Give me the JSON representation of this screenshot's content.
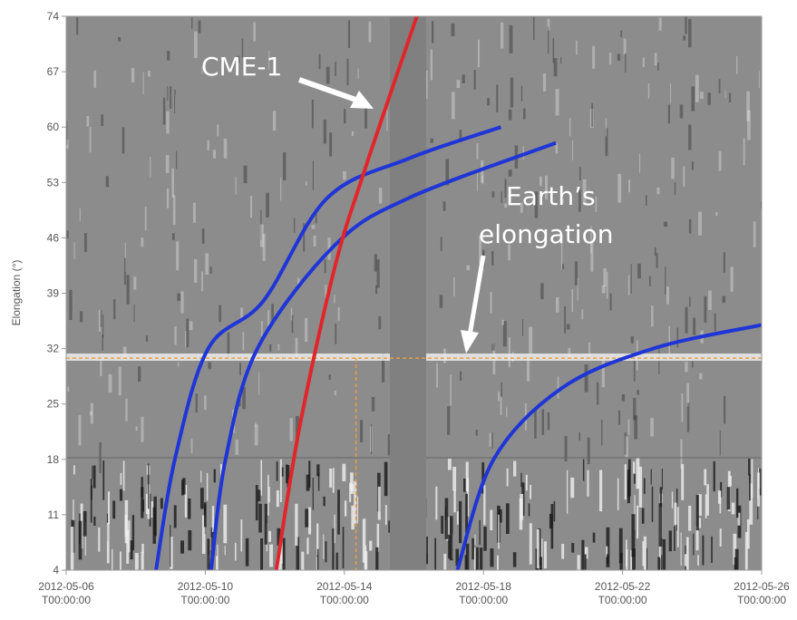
{
  "chart_data": {
    "type": "line",
    "y_label": "Elongation (°)",
    "xlim": [
      "2012-05-06T00:00:00",
      "2012-05-26T00:00:00"
    ],
    "xticks": [
      {
        "value": "2012-05-06T00:00:00",
        "label": [
          "2012-05-06",
          "T00:00:00"
        ]
      },
      {
        "value": "2012-05-10T00:00:00",
        "label": [
          "2012-05-10",
          "T00:00:00"
        ]
      },
      {
        "value": "2012-05-14T00:00:00",
        "label": [
          "2012-05-14",
          "T00:00:00"
        ]
      },
      {
        "value": "2012-05-18T00:00:00",
        "label": [
          "2012-05-18",
          "T00:00:00"
        ]
      },
      {
        "value": "2012-05-22T00:00:00",
        "label": [
          "2012-05-22",
          "T00:00:00"
        ]
      },
      {
        "value": "2012-05-26T00:00:00",
        "label": [
          "2012-05-26",
          "T00:00:00"
        ]
      }
    ],
    "ylim": [
      4,
      74
    ],
    "yticks": [
      4,
      11,
      18,
      25,
      32,
      39,
      46,
      53,
      60,
      67,
      74
    ],
    "series": [
      {
        "color": "#1f35d6",
        "x": [
          "2012-05-08T14:00:00",
          "2012-05-09T03:00:00",
          "2012-05-10T02:00:00",
          "2012-05-11T16:00:00",
          "2012-05-13T12:00:00",
          "2012-05-15T20:00:00",
          "2012-05-18T12:00:00"
        ],
        "values": [
          4,
          18,
          32,
          38,
          51,
          56,
          60
        ]
      },
      {
        "color": "#1f35d6",
        "x": [
          "2012-05-10T04:00:00",
          "2012-05-10T14:00:00",
          "2012-05-11T12:00:00",
          "2012-05-13T17:00:00",
          "2012-05-15T20:00:00",
          "2012-05-20T02:00:00"
        ],
        "values": [
          4,
          18,
          32,
          45,
          51,
          58
        ]
      },
      {
        "color": "#1f35d6",
        "x": [
          "2012-05-17T06:00:00",
          "2012-05-18T07:00:00",
          "2012-05-20T06:00:00",
          "2012-05-22T21:00:00",
          "2012-05-26T00:00:00"
        ],
        "values": [
          4,
          18,
          27,
          32,
          35
        ]
      },
      {
        "color": "#e0262a",
        "x": [
          "2012-05-12T01:00:00",
          "2012-05-12T17:00:00",
          "2012-05-13T17:00:00",
          "2012-05-14T13:00:00",
          "2012-05-16T02:00:00"
        ],
        "values": [
          4,
          22,
          42,
          54,
          74
        ]
      }
    ],
    "hline": 30.8,
    "vline": "2012-05-14T08:00:00",
    "ref_color": "#e8a040",
    "annotations": [
      {
        "text": [
          "CME-1"
        ]
      },
      {
        "text": [
          "Earth’s",
          "elongation"
        ]
      }
    ]
  }
}
